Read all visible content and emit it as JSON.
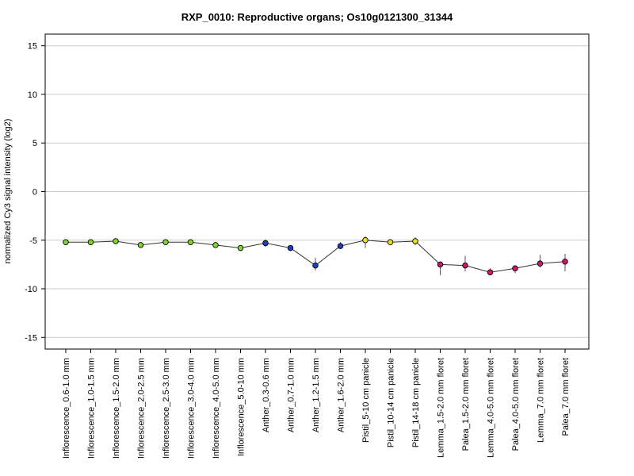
{
  "chart_data": {
    "type": "line",
    "title": "RXP_0010: Reproductive organs; Os10g0121300_31344",
    "xlabel": "",
    "ylabel": "normalized Cy3 signal intensity (log2)",
    "ylim": [
      -16.2,
      16.2
    ],
    "yticks": [
      15,
      10,
      5,
      0,
      -5,
      -10,
      -15
    ],
    "grid": true,
    "categories": [
      "Inflorescence_0.6-1.0 mm",
      "Inflorescence_1.0-1.5 mm",
      "Inflorescence_1.5-2.0 mm",
      "Inflorescence_2.0-2.5 mm",
      "Inflorescence_2.5-3.0 mm",
      "Inflorescence_3.0-4.0 mm",
      "Inflorescence_4.0-5.0 mm",
      "Inflorescence_5.0-10 mm",
      "Anther_0.3-0.6 mm",
      "Anther_0.7-1.0 mm",
      "Anther_1.2-1.5 mm",
      "Anther_1.6-2.0 mm",
      "Pistil_5-10 cm panicle",
      "Pistil_10-14 cm panicle",
      "Pistil_14-18 cm panicle",
      "Lemma_1.5-2.0 mm floret",
      "Palea_1.5-2.0 mm floret",
      "Lemma_4.0-5.0 mm floret",
      "Palea_4.0-5.0 mm floret",
      "Lemma_7.0 mm floret",
      "Palea_7.0 mm floret"
    ],
    "series": [
      {
        "values": [
          -5.2,
          -5.2,
          -5.1,
          -5.5,
          -5.2,
          -5.2,
          -5.5,
          -5.8,
          -5.3,
          -5.8,
          -7.6,
          -5.6,
          -5.0,
          -5.2,
          -5.1,
          -7.5,
          -7.6,
          -8.3,
          -7.9,
          -7.4,
          -7.2
        ],
        "error_low": [
          -5.3,
          -5.3,
          -5.2,
          -5.6,
          -5.3,
          -5.3,
          -5.6,
          -5.9,
          -5.7,
          -5.9,
          -8.1,
          -5.9,
          -5.8,
          -5.4,
          -5.5,
          -8.6,
          -8.2,
          -8.5,
          -8.4,
          -7.8,
          -8.2
        ],
        "error_high": [
          -5.1,
          -5.1,
          -5.0,
          -5.4,
          -5.1,
          -5.1,
          -5.4,
          -5.7,
          -4.9,
          -5.6,
          -6.8,
          -5.2,
          -4.6,
          -4.9,
          -4.7,
          -7.4,
          -6.6,
          -7.9,
          -7.7,
          -6.5,
          -6.4
        ],
        "point_colors": [
          "#7FD826",
          "#7FD826",
          "#7FD826",
          "#7FD826",
          "#7FD826",
          "#7FD826",
          "#7FD826",
          "#7FD826",
          "#1F3FBF",
          "#1F3FBF",
          "#1F3FBF",
          "#1F3FBF",
          "#E8E018",
          "#E8E018",
          "#E8E018",
          "#D01470",
          "#D01470",
          "#D01470",
          "#D01470",
          "#D01470",
          "#D01470"
        ]
      }
    ]
  }
}
